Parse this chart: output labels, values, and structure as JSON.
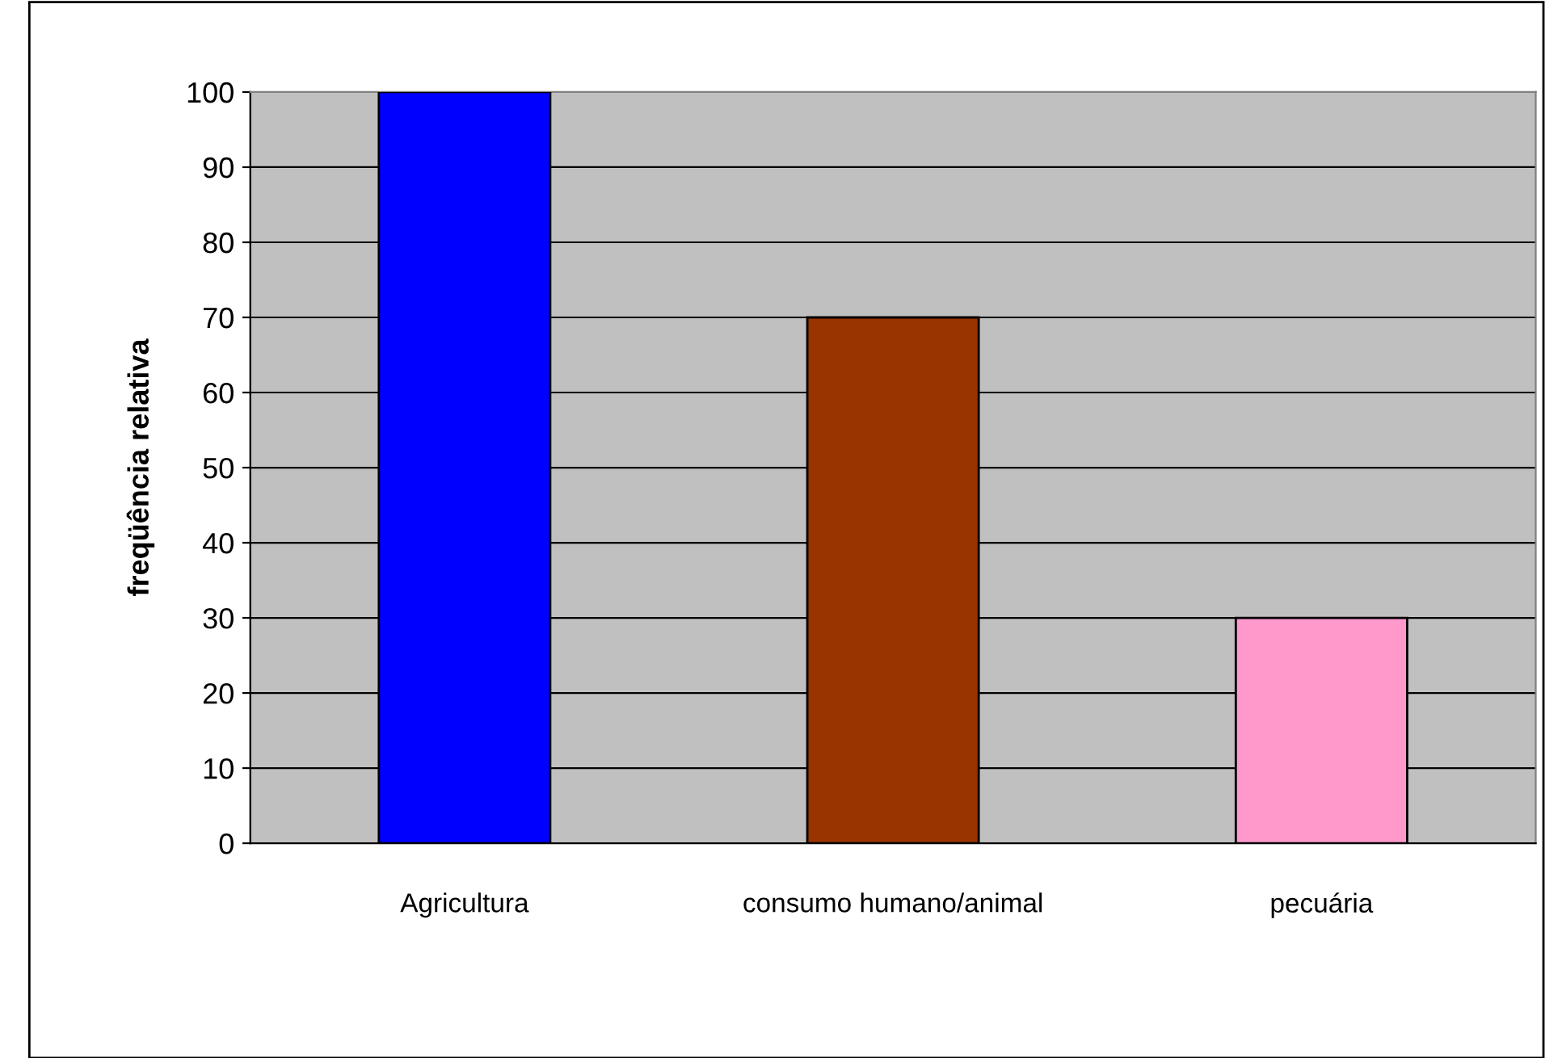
{
  "chart_data": {
    "type": "bar",
    "ylabel": "freqüência relativa",
    "categories": [
      "Agricultura",
      "consumo humano/animal",
      "pecuária"
    ],
    "values": [
      100,
      70,
      30
    ],
    "colors": [
      "#0000ff",
      "#993300",
      "#ff99cc"
    ],
    "ylim": [
      0,
      100
    ],
    "yticks": [
      0,
      10,
      20,
      30,
      40,
      50,
      60,
      70,
      80,
      90,
      100
    ],
    "grid": "y",
    "legend": false
  }
}
